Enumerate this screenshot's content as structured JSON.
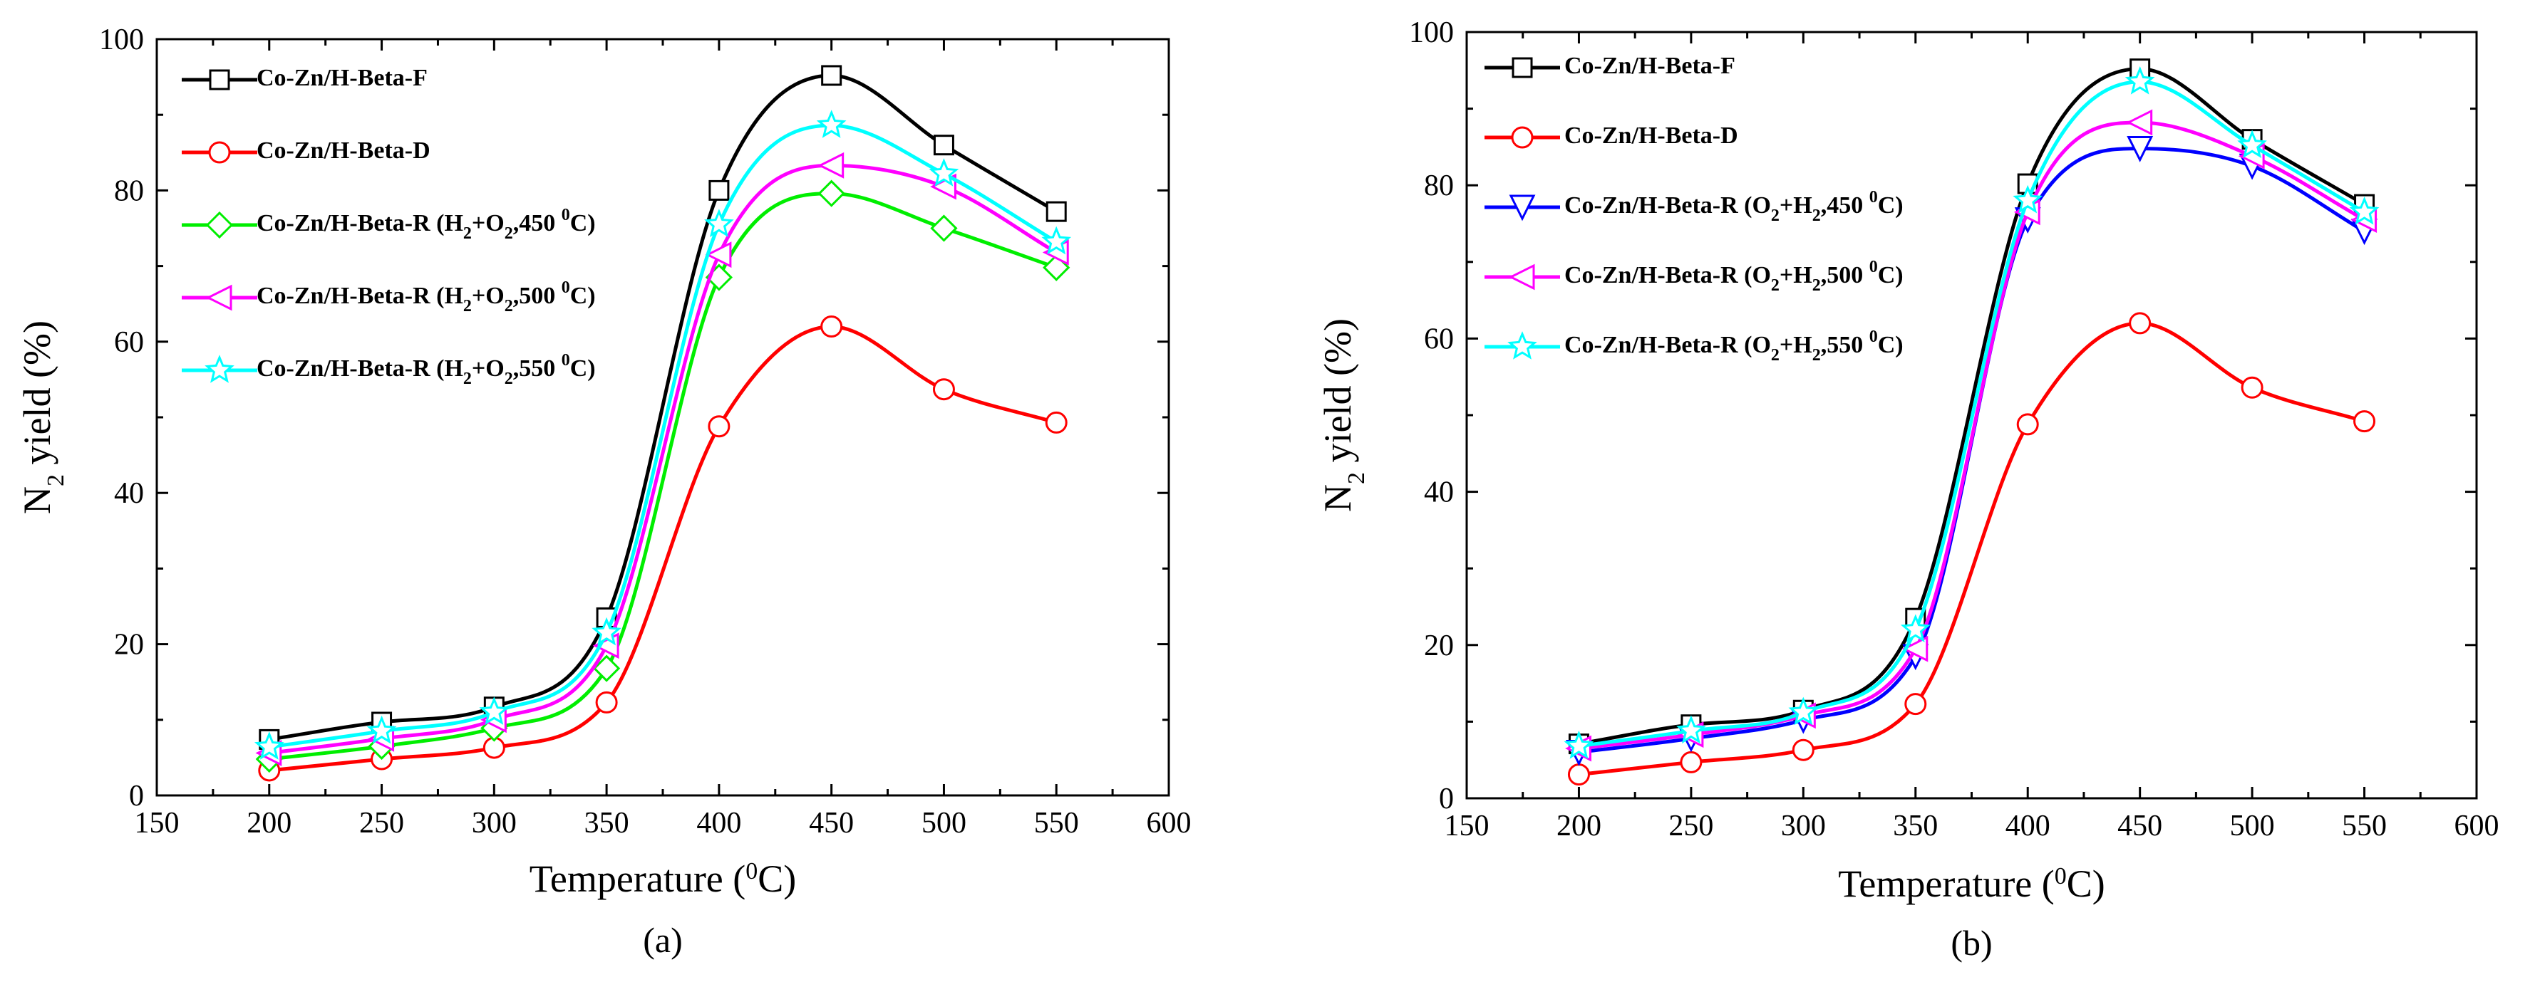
{
  "figure": {
    "panels": [
      "(a)",
      "(b)"
    ]
  },
  "chart_data": [
    {
      "type": "line",
      "panel_label": "(a)",
      "xlabel": "Temperature (⁰C)",
      "xlabel_parts": {
        "main": "Temperature (",
        "sup": "0",
        "tail": "C)"
      },
      "ylabel": "N2 yield (%)",
      "ylabel_parts": {
        "pre": "N",
        "sub": "2",
        "post": " yield (%)"
      },
      "xlim": [
        150,
        600
      ],
      "ylim": [
        0,
        100
      ],
      "x_ticks": [
        150,
        200,
        250,
        300,
        350,
        400,
        450,
        500,
        550,
        600
      ],
      "y_ticks": [
        0,
        20,
        40,
        60,
        80,
        100
      ],
      "grid": false,
      "legend_position": "top-left",
      "x": [
        200,
        250,
        300,
        350,
        400,
        450,
        500,
        550
      ],
      "series": [
        {
          "name": "Co-Zn/H-Beta-F",
          "legend": {
            "pre": "Co-Zn/H-Beta-F"
          },
          "color": "#000000",
          "marker": "square",
          "values": [
            7.4,
            9.7,
            11.7,
            23.5,
            80.0,
            95.2,
            86.0,
            77.2
          ]
        },
        {
          "name": "Co-Zn/H-Beta-D",
          "legend": {
            "pre": "Co-Zn/H-Beta-D"
          },
          "color": "#ff0000",
          "marker": "circle",
          "values": [
            3.3,
            4.8,
            6.3,
            12.3,
            48.8,
            62.0,
            53.7,
            49.3
          ]
        },
        {
          "name": "Co-Zn/H-Beta-R (H2+O2,450 0C)",
          "legend": {
            "pre": "Co-Zn/H-Beta-R (H",
            "s1": "2",
            "mid": "+O",
            "s2": "2",
            "rest": ",450 ",
            "sup": "0",
            "end": "C)"
          },
          "color": "#00ee00",
          "marker": "diamond",
          "values": [
            4.8,
            6.5,
            8.9,
            16.8,
            68.5,
            79.6,
            75.0,
            69.8
          ]
        },
        {
          "name": "Co-Zn/H-Beta-R (H2+O2,500 0C)",
          "legend": {
            "pre": "Co-Zn/H-Beta-R (H",
            "s1": "2",
            "mid": "+O",
            "s2": "2",
            "rest": ",500 ",
            "sup": "0",
            "end": "C)"
          },
          "color": "#ff00ff",
          "marker": "triangle-left",
          "values": [
            5.6,
            7.5,
            10.0,
            19.8,
            71.5,
            83.3,
            80.5,
            71.8
          ]
        },
        {
          "name": "Co-Zn/H-Beta-R (H2+O2,550 0C)",
          "legend": {
            "pre": "Co-Zn/H-Beta-R (H",
            "s1": "2",
            "mid": "+O",
            "s2": "2",
            "rest": ",550 ",
            "sup": "0",
            "end": "C)"
          },
          "color": "#00ffff",
          "marker": "star",
          "values": [
            6.4,
            8.5,
            11.0,
            21.5,
            75.5,
            88.6,
            82.2,
            73.2
          ]
        }
      ]
    },
    {
      "type": "line",
      "panel_label": "(b)",
      "xlabel": "Temperature (⁰C)",
      "xlabel_parts": {
        "main": "Temperature (",
        "sup": "0",
        "tail": "C)"
      },
      "ylabel": "N2 yield (%)",
      "ylabel_parts": {
        "pre": "N",
        "sub": "2",
        "post": " yield (%)"
      },
      "xlim": [
        150,
        600
      ],
      "ylim": [
        0,
        100
      ],
      "x_ticks": [
        150,
        200,
        250,
        300,
        350,
        400,
        450,
        500,
        550,
        600
      ],
      "y_ticks": [
        0,
        20,
        40,
        60,
        80,
        100
      ],
      "grid": false,
      "legend_position": "top-left",
      "x": [
        200,
        250,
        300,
        350,
        400,
        450,
        500,
        550
      ],
      "series": [
        {
          "name": "Co-Zn/H-Beta-F",
          "legend": {
            "pre": "Co-Zn/H-Beta-F"
          },
          "color": "#000000",
          "marker": "square",
          "values": [
            7.1,
            9.6,
            11.5,
            23.5,
            80.2,
            95.2,
            86.0,
            77.5
          ]
        },
        {
          "name": "Co-Zn/H-Beta-D",
          "legend": {
            "pre": "Co-Zn/H-Beta-D"
          },
          "color": "#ff0000",
          "marker": "circle",
          "values": [
            3.1,
            4.7,
            6.3,
            12.3,
            48.8,
            62.0,
            53.6,
            49.2
          ]
        },
        {
          "name": "Co-Zn/H-Beta-R (O2+H2,450 0C)",
          "legend": {
            "pre": "Co-Zn/H-Beta-R (O",
            "s1": "2",
            "mid": "+H",
            "s2": "2",
            "rest": ",450 ",
            "sup": "0",
            "end": "C)"
          },
          "color": "#0000ff",
          "marker": "triangle-down",
          "values": [
            6.0,
            7.8,
            10.2,
            18.5,
            75.5,
            84.8,
            82.5,
            74.0
          ]
        },
        {
          "name": "Co-Zn/H-Beta-R (O2+H2,500 0C)",
          "legend": {
            "pre": "Co-Zn/H-Beta-R (O",
            "s1": "2",
            "mid": "+H",
            "s2": "2",
            "rest": ",500 ",
            "sup": "0",
            "end": "C)"
          },
          "color": "#ff00ff",
          "marker": "triangle-left",
          "values": [
            6.5,
            8.3,
            10.8,
            19.5,
            76.5,
            88.2,
            83.8,
            75.5
          ]
        },
        {
          "name": "Co-Zn/H-Beta-R (O2+H2,550 0C)",
          "legend": {
            "pre": "Co-Zn/H-Beta-R (O",
            "s1": "2",
            "mid": "+H",
            "s2": "2",
            "rest": ",550 ",
            "sup": "0",
            "end": "C)"
          },
          "color": "#00ffff",
          "marker": "star",
          "values": [
            6.8,
            8.8,
            11.2,
            22.0,
            78.0,
            93.5,
            85.2,
            76.5
          ]
        }
      ]
    }
  ]
}
